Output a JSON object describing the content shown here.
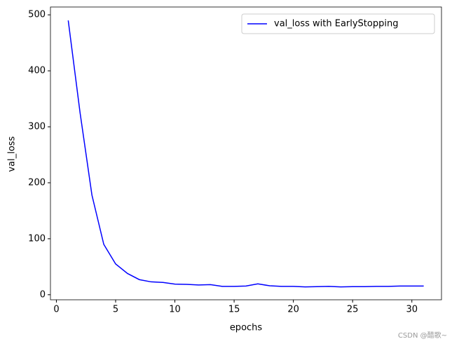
{
  "chart_data": {
    "type": "line",
    "xlabel": "epochs",
    "ylabel": "val_loss",
    "x": [
      1,
      2,
      3,
      4,
      5,
      6,
      7,
      8,
      9,
      10,
      11,
      12,
      13,
      14,
      15,
      16,
      17,
      18,
      19,
      20,
      21,
      22,
      23,
      24,
      25,
      26,
      27,
      28,
      29,
      30,
      31
    ],
    "series": [
      {
        "name": "val_loss with EarlyStopping",
        "color": "#0000ff",
        "values": [
          490,
          325,
          178,
          90,
          55,
          38,
          27,
          23,
          22,
          19,
          18.5,
          17.5,
          18,
          15,
          15,
          15.5,
          19.5,
          16,
          15,
          15,
          14,
          14.5,
          15,
          14,
          14.5,
          14.5,
          15,
          15,
          15.5,
          15.5,
          15.5
        ]
      }
    ],
    "xlim": [
      -0.5,
      32.5
    ],
    "xticks": [
      0,
      5,
      10,
      15,
      20,
      25,
      30
    ],
    "ylim": [
      -9,
      514
    ],
    "yticks": [
      0,
      100,
      200,
      300,
      400,
      500
    ],
    "legend": "upper right",
    "grid": false
  },
  "watermark": "CSDN @醋歌~"
}
